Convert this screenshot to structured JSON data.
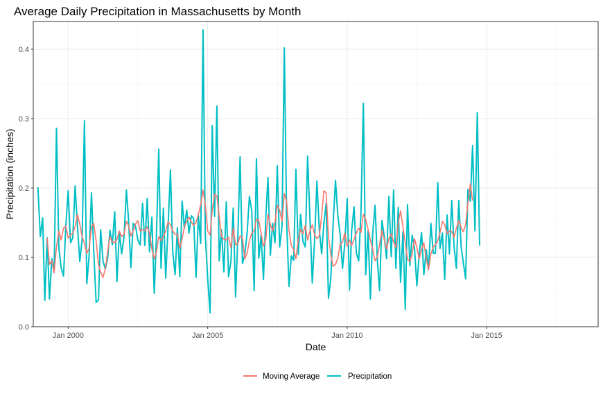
{
  "chart_data": {
    "type": "line",
    "title": "Average Daily Precipitation in Massachusetts by Month",
    "xlabel": "Date",
    "ylabel": "Precipitation (inches)",
    "xlim": [
      "1998-10-01",
      "2018-12-31"
    ],
    "ylim": [
      0,
      0.44
    ],
    "yticks": [
      0.0,
      0.1,
      0.2,
      0.3,
      0.4
    ],
    "ytick_labels": [
      "0.0",
      "0.1",
      "0.2",
      "0.3",
      "0.4"
    ],
    "xticks": [
      "2000-01-01",
      "2005-01-01",
      "2010-01-01",
      "2015-01-01"
    ],
    "xtick_labels": [
      "Jan 2000",
      "Jan 2005",
      "Jan 2010",
      "Jan 2015"
    ],
    "grid": true,
    "legend_position": "bottom",
    "start_month": "1998-12",
    "series": [
      {
        "name": "Precipitation",
        "color": "#00BFC4",
        "values": [
          0.201,
          0.13,
          0.157,
          0.038,
          0.128,
          0.04,
          0.098,
          0.078,
          0.286,
          0.113,
          0.085,
          0.073,
          0.145,
          0.196,
          0.121,
          0.128,
          0.203,
          0.146,
          0.094,
          0.125,
          0.297,
          0.062,
          0.102,
          0.193,
          0.109,
          0.035,
          0.039,
          0.14,
          0.095,
          0.083,
          0.099,
          0.139,
          0.118,
          0.166,
          0.065,
          0.137,
          0.105,
          0.129,
          0.197,
          0.155,
          0.085,
          0.149,
          0.145,
          0.125,
          0.118,
          0.178,
          0.117,
          0.185,
          0.108,
          0.158,
          0.048,
          0.128,
          0.256,
          0.084,
          0.171,
          0.07,
          0.144,
          0.226,
          0.108,
          0.075,
          0.143,
          0.072,
          0.181,
          0.142,
          0.168,
          0.135,
          0.16,
          0.156,
          0.071,
          0.16,
          0.12,
          0.428,
          0.13,
          0.069,
          0.02,
          0.29,
          0.159,
          0.318,
          0.095,
          0.14,
          0.079,
          0.18,
          0.072,
          0.094,
          0.171,
          0.043,
          0.134,
          0.245,
          0.091,
          0.104,
          0.135,
          0.188,
          0.167,
          0.052,
          0.242,
          0.099,
          0.132,
          0.068,
          0.159,
          0.215,
          0.103,
          0.149,
          0.121,
          0.232,
          0.115,
          0.145,
          0.402,
          0.15,
          0.058,
          0.102,
          0.096,
          0.227,
          0.104,
          0.162,
          0.123,
          0.115,
          0.246,
          0.155,
          0.063,
          0.126,
          0.21,
          0.14,
          0.105,
          0.148,
          0.178,
          0.041,
          0.07,
          0.148,
          0.211,
          0.16,
          0.133,
          0.084,
          0.12,
          0.185,
          0.053,
          0.139,
          0.173,
          0.106,
          0.095,
          0.166,
          0.322,
          0.075,
          0.138,
          0.04,
          0.134,
          0.175,
          0.094,
          0.052,
          0.153,
          0.131,
          0.098,
          0.188,
          0.101,
          0.197,
          0.084,
          0.172,
          0.064,
          0.137,
          0.025,
          0.176,
          0.088,
          0.132,
          0.113,
          0.059,
          0.104,
          0.136,
          0.075,
          0.111,
          0.082,
          0.149,
          0.106,
          0.106,
          0.208,
          0.113,
          0.135,
          0.068,
          0.161,
          0.105,
          0.182,
          0.115,
          0.084,
          0.182,
          0.115,
          0.093,
          0.069,
          0.198,
          0.181,
          0.261,
          0.138,
          0.309,
          0.117
        ]
      },
      {
        "name": "Moving Average",
        "color": "#F8766D",
        "values": [
          null,
          null,
          null,
          null,
          0.128,
          0.09,
          0.095,
          0.078,
          0.115,
          0.138,
          0.125,
          0.142,
          0.145,
          0.128,
          0.132,
          0.135,
          0.144,
          0.162,
          0.148,
          0.13,
          0.12,
          0.106,
          0.113,
          0.144,
          0.149,
          0.124,
          0.089,
          0.079,
          0.071,
          0.083,
          0.108,
          0.13,
          0.122,
          0.121,
          0.126,
          0.138,
          0.13,
          0.133,
          0.152,
          0.146,
          0.131,
          0.138,
          0.148,
          0.153,
          0.138,
          0.14,
          0.138,
          0.144,
          0.135,
          0.112,
          0.098,
          0.107,
          0.13,
          0.124,
          0.13,
          0.138,
          0.151,
          0.147,
          0.138,
          0.133,
          0.134,
          0.113,
          0.127,
          0.144,
          0.152,
          0.158,
          0.151,
          0.146,
          0.15,
          0.162,
          0.176,
          0.197,
          0.175,
          0.138,
          0.132,
          0.168,
          0.191,
          0.189,
          0.159,
          0.13,
          0.126,
          0.125,
          0.129,
          0.114,
          0.142,
          0.118,
          0.12,
          0.131,
          0.128,
          0.098,
          0.106,
          0.124,
          0.135,
          0.138,
          0.155,
          0.153,
          0.135,
          0.116,
          0.126,
          0.162,
          0.147,
          0.138,
          0.151,
          0.175,
          0.168,
          0.152,
          0.192,
          0.18,
          0.139,
          0.117,
          0.111,
          0.098,
          0.126,
          0.14,
          0.134,
          0.146,
          0.125,
          0.138,
          0.147,
          0.132,
          0.127,
          0.131,
          0.16,
          0.196,
          0.193,
          0.13,
          0.104,
          0.087,
          0.09,
          0.099,
          0.119,
          0.122,
          0.135,
          0.116,
          0.125,
          0.117,
          0.126,
          0.135,
          0.142,
          0.136,
          0.162,
          0.155,
          0.141,
          0.125,
          0.112,
          0.095,
          0.101,
          0.118,
          0.139,
          0.126,
          0.112,
          0.127,
          0.134,
          0.122,
          0.114,
          0.15,
          0.167,
          0.144,
          0.12,
          0.097,
          0.094,
          0.105,
          0.127,
          0.114,
          0.098,
          0.112,
          0.121,
          0.098,
          0.082,
          0.105,
          0.115,
          0.118,
          0.124,
          0.136,
          0.152,
          0.147,
          0.134,
          0.138,
          0.137,
          0.129,
          0.142,
          0.153,
          0.143,
          0.137,
          0.147,
          0.178,
          0.206,
          0.182
        ]
      }
    ]
  }
}
